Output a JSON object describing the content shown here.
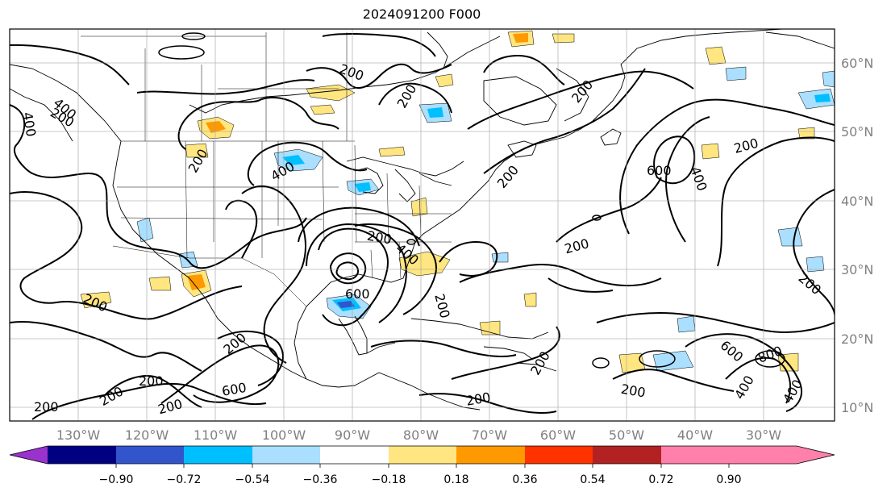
{
  "title": "2024091200 F000",
  "map": {
    "lon_range": [
      -138,
      -17
    ],
    "lat_range": [
      8,
      65
    ],
    "lon_labels": [
      "130°W",
      "120°W",
      "110°W",
      "100°W",
      "90°W",
      "80°W",
      "70°W",
      "60°W",
      "50°W",
      "40°W",
      "30°W"
    ],
    "lon_values": [
      -130,
      -120,
      -110,
      -100,
      -90,
      -80,
      -70,
      -60,
      -50,
      -40,
      -30
    ],
    "lat_labels": [
      "60°N",
      "50°N",
      "40°N",
      "30°N",
      "20°N",
      "10°N"
    ],
    "lat_values": [
      60,
      50,
      40,
      30,
      20,
      10
    ],
    "grid": true,
    "contour_labels": [
      "400",
      "200",
      "200",
      "400",
      "200",
      "200",
      "400",
      "200",
      "200",
      "200",
      "600",
      "400",
      "200",
      "200",
      "200",
      "400",
      "200",
      "600",
      "200",
      "200",
      "200",
      "200",
      "200",
      "600",
      "200",
      "200",
      "600",
      "800",
      "400",
      "400",
      "200",
      "200"
    ]
  },
  "colorbar": {
    "tick_labels": [
      "−0.90",
      "−0.72",
      "−0.54",
      "−0.36",
      "−0.18",
      "0.18",
      "0.36",
      "0.54",
      "0.72",
      "0.90"
    ],
    "colors": [
      "#9933cc",
      "#000080",
      "#3355cc",
      "#00bfff",
      "#aadfff",
      "#ffffff",
      "#ffe680",
      "#ff9900",
      "#ff3300",
      "#b22222",
      "#ff80aa"
    ]
  }
}
